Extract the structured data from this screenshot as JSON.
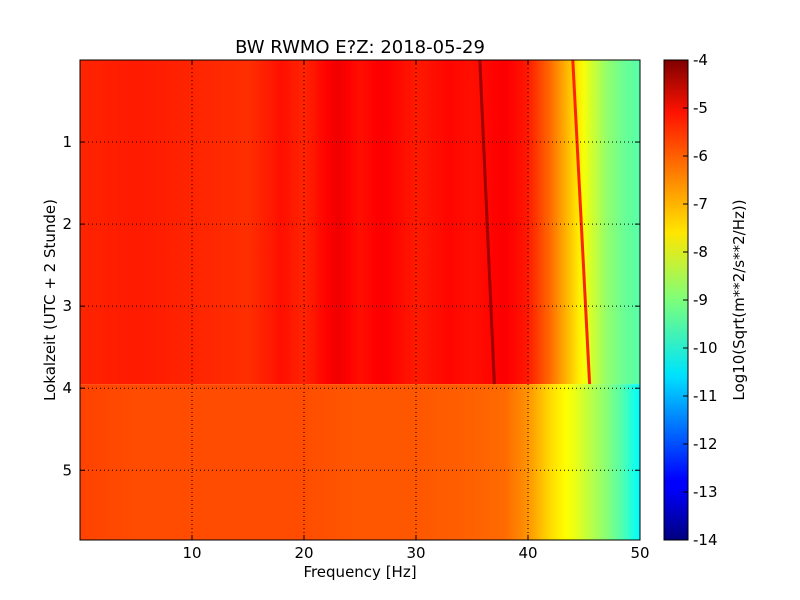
{
  "chart_data": {
    "type": "heatmap",
    "title": "BW RWMO E?Z: 2018-05-29",
    "xlabel": "Frequency [Hz]",
    "ylabel": "Lokalzeit (UTC + 2 Stunde)",
    "xlim": [
      0,
      50
    ],
    "ylim": [
      5.85,
      0
    ],
    "x_ticks": [
      "10",
      "20",
      "30",
      "40",
      "50"
    ],
    "x_tick_values": [
      10,
      20,
      30,
      40,
      50
    ],
    "y_ticks": [
      "1",
      "2",
      "3",
      "4",
      "5"
    ],
    "y_tick_values": [
      1,
      2,
      3,
      4,
      5
    ],
    "grid": true,
    "colorbar": {
      "label": "Log10(Sqrt(m**2/s**2/Hz))",
      "range": [
        -14,
        -4
      ],
      "ticks": [
        "-4",
        "-5",
        "-6",
        "-7",
        "-8",
        "-9",
        "-10",
        "-11",
        "-12",
        "-13",
        "-14"
      ],
      "tick_values": [
        -4,
        -5,
        -6,
        -7,
        -8,
        -9,
        -10,
        -11,
        -12,
        -13,
        -14
      ],
      "colormap": "jet"
    },
    "segments": [
      {
        "time_range": [
          0,
          3.95
        ],
        "freq": [
          0,
          5,
          10,
          15,
          18,
          20,
          23,
          25,
          27,
          30,
          33,
          35,
          38,
          40,
          42,
          44,
          45.5,
          47,
          48.5,
          50
        ],
        "level": [
          -5.6,
          -5.5,
          -5.6,
          -5.7,
          -5.4,
          -5.6,
          -5.1,
          -5.4,
          -5.2,
          -5.5,
          -5.3,
          -5.4,
          -5.2,
          -5.5,
          -6.3,
          -7.3,
          -8.1,
          -8.8,
          -9.2,
          -9.4
        ]
      },
      {
        "time_range": [
          3.95,
          5.85
        ],
        "freq": [
          0,
          5,
          10,
          15,
          20,
          25,
          30,
          35,
          38,
          40,
          42,
          44,
          45.5,
          47,
          48.5,
          50
        ],
        "level": [
          -5.9,
          -6.0,
          -6.0,
          -6.0,
          -6.0,
          -6.1,
          -6.1,
          -6.2,
          -6.3,
          -6.7,
          -7.4,
          -7.9,
          -8.4,
          -8.9,
          -9.5,
          -10.3
        ]
      }
    ],
    "lines": [
      {
        "name": "",
        "time": [
          0,
          3.95
        ],
        "freq": [
          35.7,
          37
        ],
        "level": -4.3
      },
      {
        "name": "",
        "time": [
          0,
          3.95
        ],
        "freq": [
          44,
          45.5
        ],
        "level": -5.6
      }
    ],
    "colors": {
      "jet_max": "#7f0000",
      "jet_min": "#00007f"
    }
  }
}
